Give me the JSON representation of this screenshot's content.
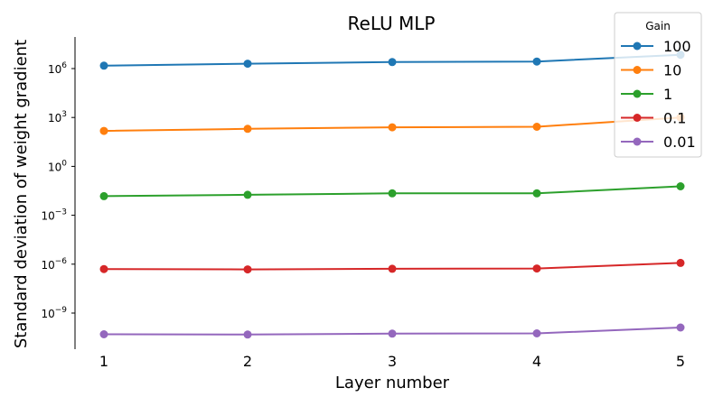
{
  "chart_data": {
    "type": "line",
    "title": "ReLU MLP",
    "xlabel": "Layer number",
    "ylabel": "Standard deviation of weight gradient",
    "x": [
      1,
      2,
      3,
      4,
      5
    ],
    "x_ticks": [
      "1",
      "2",
      "3",
      "4",
      "5"
    ],
    "yscale": "log",
    "ylim": [
      3e-11,
      30000000.0
    ],
    "y_ticks": [
      {
        "value": 1e-09,
        "base": "10",
        "exp": "−9"
      },
      {
        "value": 1e-06,
        "base": "10",
        "exp": "−6"
      },
      {
        "value": 0.001,
        "base": "10",
        "exp": "−3"
      },
      {
        "value": 1,
        "base": "10",
        "exp": "0"
      },
      {
        "value": 1000.0,
        "base": "10",
        "exp": "3"
      },
      {
        "value": 1000000.0,
        "base": "10",
        "exp": "6"
      }
    ],
    "grid": false,
    "legend": {
      "title": "Gain",
      "placement": "top-right"
    },
    "series": [
      {
        "name": "100",
        "color": "#1f77b4",
        "values": [
          1500000.0,
          2000000.0,
          2500000.0,
          2700000.0,
          7000000.0
        ]
      },
      {
        "name": "10",
        "color": "#ff7f0e",
        "values": [
          150,
          200,
          250,
          270,
          1000
        ]
      },
      {
        "name": "1",
        "color": "#2ca02c",
        "values": [
          0.015,
          0.018,
          0.022,
          0.022,
          0.06
        ]
      },
      {
        "name": "0.1",
        "color": "#d62728",
        "values": [
          5e-07,
          4.8e-07,
          5.2e-07,
          5.4e-07,
          1.2e-06
        ]
      },
      {
        "name": "0.01",
        "color": "#9467bd",
        "values": [
          5e-11,
          4.8e-11,
          5.5e-11,
          5.7e-11,
          1.3e-10
        ]
      }
    ]
  }
}
